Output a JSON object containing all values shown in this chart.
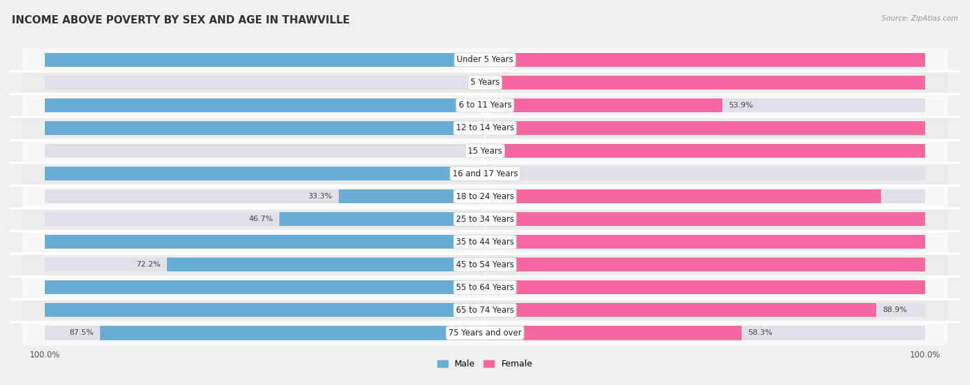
{
  "title": "INCOME ABOVE POVERTY BY SEX AND AGE IN THAWVILLE",
  "source": "Source: ZipAtlas.com",
  "categories": [
    "Under 5 Years",
    "5 Years",
    "6 to 11 Years",
    "12 to 14 Years",
    "15 Years",
    "16 and 17 Years",
    "18 to 24 Years",
    "25 to 34 Years",
    "35 to 44 Years",
    "45 to 54 Years",
    "55 to 64 Years",
    "65 to 74 Years",
    "75 Years and over"
  ],
  "male": [
    100.0,
    0.0,
    100.0,
    100.0,
    0.0,
    100.0,
    33.3,
    46.7,
    100.0,
    72.2,
    100.0,
    100.0,
    87.5
  ],
  "female": [
    100.0,
    100.0,
    53.9,
    100.0,
    100.0,
    0.0,
    90.0,
    100.0,
    100.0,
    100.0,
    100.0,
    88.9,
    58.3
  ],
  "male_color": "#6aaed6",
  "female_color": "#f768a1",
  "male_label": "Male",
  "female_label": "Female",
  "background_color": "#f0f0f0",
  "bar_background_color": "#e0e0e8",
  "row_bg_color": "#f8f8f8",
  "title_fontsize": 11,
  "label_fontsize": 8.5,
  "value_fontsize": 8.0,
  "axis_fontsize": 8.5,
  "bar_height": 0.62,
  "xlim": 100
}
